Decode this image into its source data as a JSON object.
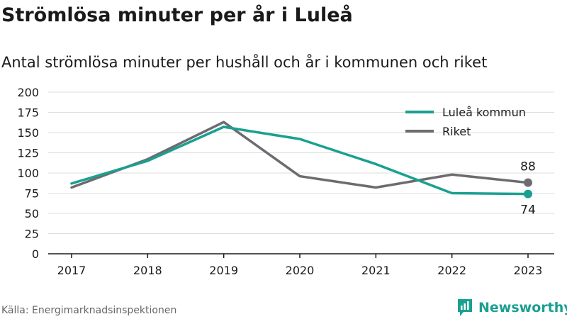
{
  "title": "Strömlösa minuter per år i Luleå",
  "subtitle": "Antal strömlösa minuter per hushåll och år i kommunen och riket",
  "source": "Källa: Energimarknadsinspektionen",
  "brand": {
    "name": "Newsworthy",
    "icon": "newsworthy-logo-icon",
    "color": "#1aa091"
  },
  "chart_data": {
    "type": "line",
    "x": [
      "2017",
      "2018",
      "2019",
      "2020",
      "2021",
      "2022",
      "2023"
    ],
    "ylim": [
      0,
      200
    ],
    "yticks": [
      "0",
      "25",
      "50",
      "75",
      "100",
      "125",
      "150",
      "175",
      "200"
    ],
    "grid": true,
    "legend_position": "top-right",
    "series": [
      {
        "name": "Luleå kommun",
        "color": "#1aa091",
        "values": [
          87,
          115,
          157,
          142,
          111,
          75,
          74
        ],
        "end_label": "74"
      },
      {
        "name": "Riket",
        "color": "#6d6b70",
        "values": [
          82,
          117,
          163,
          96,
          82,
          98,
          88
        ],
        "end_label": "88"
      }
    ]
  }
}
